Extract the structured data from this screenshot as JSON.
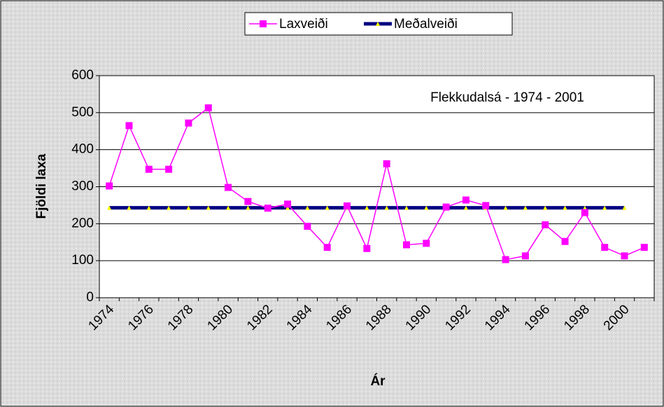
{
  "chart_data": {
    "type": "line",
    "annotation": "Flekkudalsá - 1974 - 2001",
    "x_label": "Ár",
    "y_label": "Fjöldi laxa",
    "categories": [
      "1974",
      null,
      "1976",
      null,
      "1978",
      null,
      "1980",
      null,
      "1982",
      null,
      "1984",
      null,
      "1986",
      null,
      "1988",
      null,
      "1990",
      null,
      "1992",
      null,
      "1994",
      null,
      "1996",
      null,
      "1998",
      null,
      "2000",
      null
    ],
    "series": [
      {
        "name": "Laxveiði",
        "color": "#ff00ff",
        "marker": "square",
        "marker_color": "#ff00ff",
        "values": [
          302,
          465,
          347,
          347,
          472,
          513,
          298,
          260,
          242,
          253,
          193,
          136,
          248,
          133,
          362,
          143,
          147,
          245,
          264,
          249,
          103,
          113,
          197,
          152,
          230,
          136,
          113,
          136
        ]
      },
      {
        "name": "Meðalveiði",
        "color": "#000080",
        "marker": "triangle",
        "marker_color": "#ffff00",
        "values": [
          243,
          243,
          243,
          243,
          243,
          243,
          243,
          243,
          243,
          243,
          243,
          243,
          243,
          243,
          243,
          243,
          243,
          243,
          243,
          243,
          243,
          243,
          243,
          243,
          243,
          243,
          243,
          null
        ]
      }
    ],
    "ylim": [
      0,
      600
    ],
    "yticks": [
      0,
      100,
      200,
      300,
      400,
      500,
      600
    ],
    "grid": true,
    "legend": "top"
  }
}
